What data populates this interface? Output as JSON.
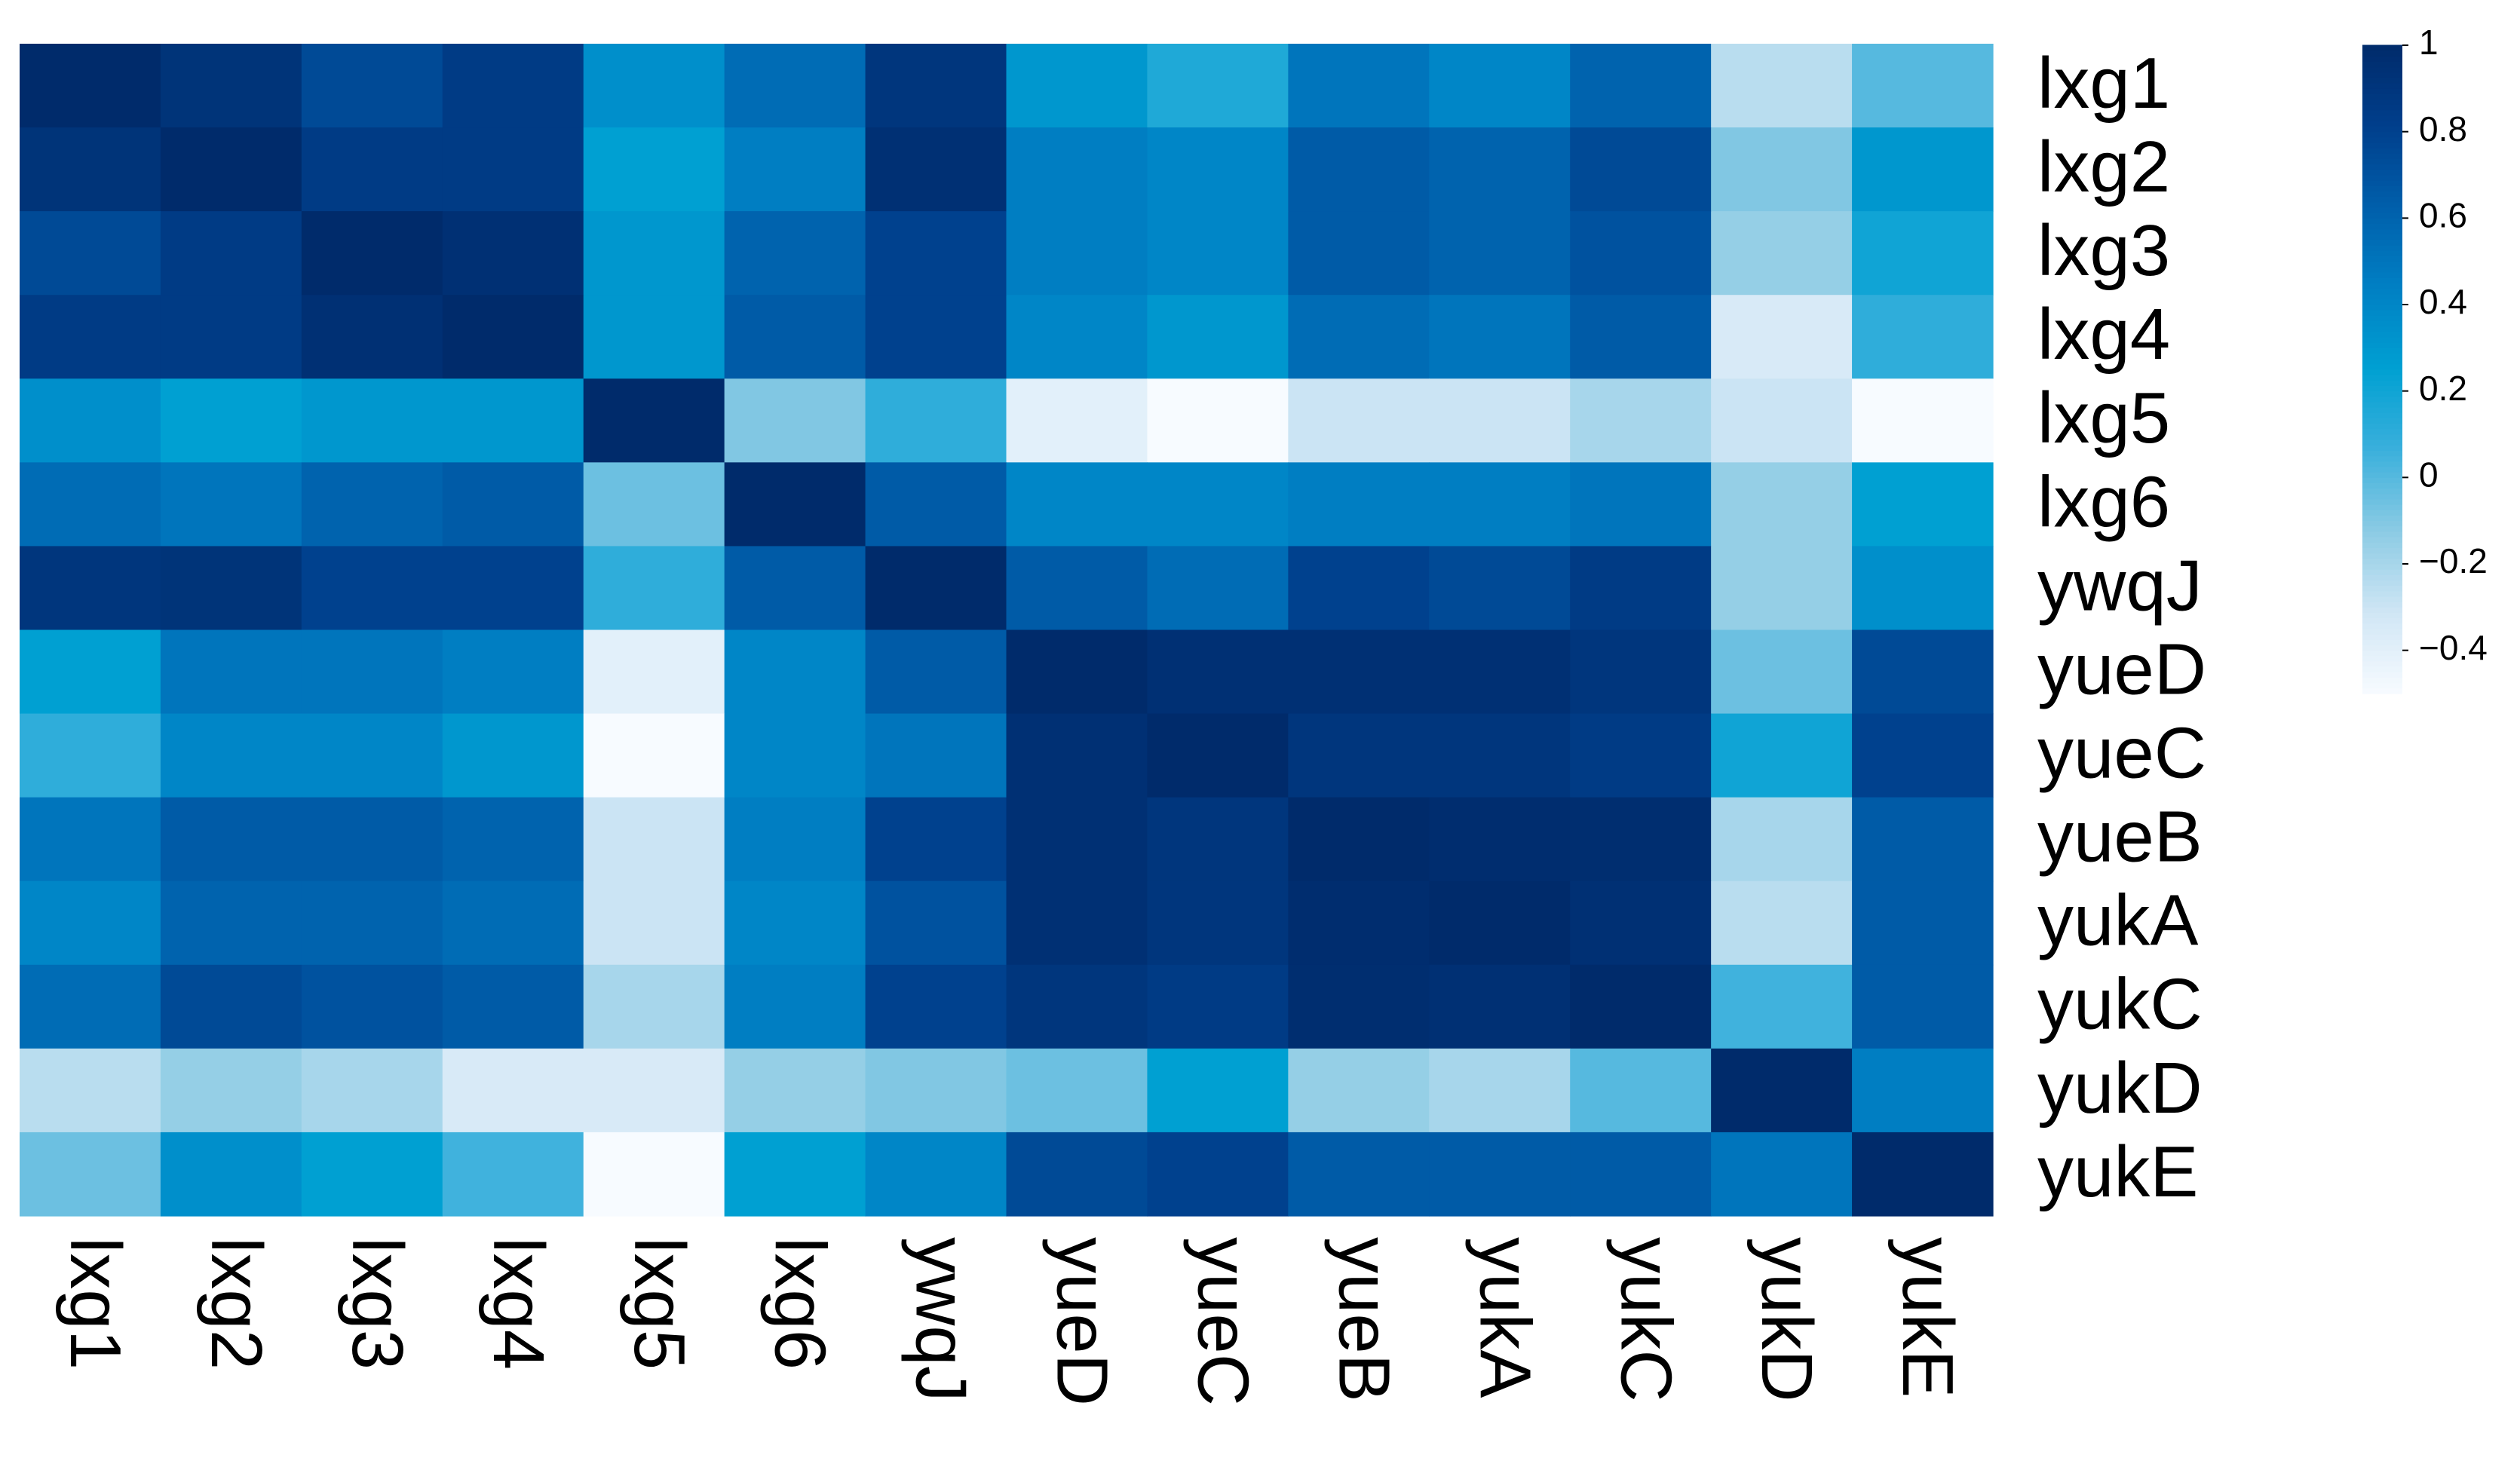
{
  "chart_data": {
    "type": "heatmap",
    "x_categories": [
      "lxg1",
      "lxg2",
      "lxg3",
      "lxg4",
      "lxg5",
      "lxg6",
      "ywqJ",
      "yueD",
      "yueC",
      "yueB",
      "yukA",
      "yukC",
      "yukD",
      "yukE"
    ],
    "y_categories": [
      "lxg1",
      "lxg2",
      "lxg3",
      "lxg4",
      "lxg5",
      "lxg6",
      "ywqJ",
      "yueD",
      "yueC",
      "yueB",
      "yukA",
      "yukC",
      "yukD",
      "yukE"
    ],
    "values": [
      [
        1,
        0.92,
        0.75,
        0.85,
        0.35,
        0.55,
        0.9,
        0.3,
        0.15,
        0.5,
        0.4,
        0.6,
        -0.25,
        0.0
      ],
      [
        0.92,
        1,
        0.85,
        0.85,
        0.25,
        0.45,
        0.95,
        0.45,
        0.4,
        0.65,
        0.6,
        0.75,
        -0.1,
        0.3
      ],
      [
        0.75,
        0.85,
        1,
        0.95,
        0.3,
        0.6,
        0.8,
        0.45,
        0.4,
        0.65,
        0.6,
        0.7,
        -0.15,
        0.2
      ],
      [
        0.85,
        0.85,
        0.95,
        1,
        0.3,
        0.65,
        0.8,
        0.4,
        0.3,
        0.55,
        0.5,
        0.65,
        -0.35,
        0.1
      ],
      [
        0.35,
        0.25,
        0.3,
        0.3,
        1,
        -0.1,
        0.1,
        -0.4,
        -0.5,
        -0.3,
        -0.3,
        -0.2,
        -0.3,
        -0.5
      ],
      [
        0.55,
        0.5,
        0.6,
        0.65,
        -0.05,
        1,
        0.65,
        0.4,
        0.4,
        0.45,
        0.45,
        0.5,
        -0.15,
        0.25
      ],
      [
        0.9,
        0.92,
        0.8,
        0.8,
        0.1,
        0.65,
        1,
        0.65,
        0.55,
        0.8,
        0.75,
        0.85,
        -0.15,
        0.35
      ],
      [
        0.25,
        0.5,
        0.5,
        0.45,
        -0.4,
        0.4,
        0.65,
        1,
        0.95,
        0.95,
        0.95,
        0.9,
        -0.05,
        0.75
      ],
      [
        0.1,
        0.4,
        0.4,
        0.3,
        -0.5,
        0.4,
        0.5,
        0.95,
        1,
        0.9,
        0.9,
        0.85,
        0.2,
        0.8
      ],
      [
        0.5,
        0.65,
        0.65,
        0.6,
        -0.3,
        0.45,
        0.8,
        0.95,
        0.9,
        1,
        0.98,
        0.97,
        -0.2,
        0.65
      ],
      [
        0.4,
        0.6,
        0.6,
        0.55,
        -0.3,
        0.4,
        0.7,
        0.95,
        0.9,
        0.98,
        1,
        0.95,
        -0.25,
        0.65
      ],
      [
        0.55,
        0.75,
        0.7,
        0.65,
        -0.2,
        0.45,
        0.8,
        0.9,
        0.85,
        0.97,
        0.95,
        1,
        0.05,
        0.65
      ],
      [
        -0.25,
        -0.15,
        -0.2,
        -0.35,
        -0.35,
        -0.15,
        -0.1,
        -0.05,
        0.25,
        -0.15,
        -0.2,
        0.0,
        1,
        0.45
      ],
      [
        -0.05,
        0.35,
        0.25,
        0.05,
        -0.5,
        0.25,
        0.4,
        0.75,
        0.8,
        0.65,
        0.65,
        0.65,
        0.5,
        1
      ]
    ],
    "zlim": [
      -0.5,
      1
    ],
    "zticks": [
      1,
      0.8,
      0.6,
      0.4,
      0.2,
      0,
      {
        "value": -0.2,
        "label": "−0.2"
      },
      {
        "value": -0.4,
        "label": "−0.4"
      }
    ],
    "colorscale": [
      "#f7fbff",
      "#d0e6f5",
      "#8ccbe4",
      "#3bb0dc",
      "#00a0d2",
      "#0080c4",
      "#005fab",
      "#003f8c",
      "#002b6b"
    ]
  }
}
